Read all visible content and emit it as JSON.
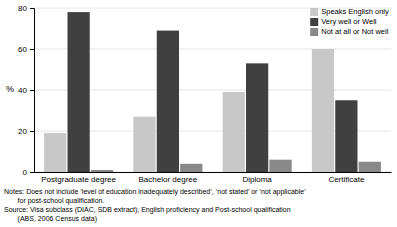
{
  "chart_data": {
    "type": "bar",
    "categories": [
      "Postgraduate degree",
      "Bachelor degree",
      "Diploma",
      "Certificate"
    ],
    "series": [
      {
        "name": "Speaks English only",
        "color": "#c8c8c8",
        "values": [
          19,
          27,
          39,
          60
        ]
      },
      {
        "name": "Very well or Well",
        "color": "#404040",
        "values": [
          78,
          69,
          53,
          35
        ]
      },
      {
        "name": "Not at all or Not well",
        "color": "#888888",
        "values": [
          1,
          4,
          6,
          5
        ]
      }
    ],
    "ylabel": "%",
    "ylim": [
      0,
      80
    ],
    "yticks": [
      0,
      20,
      40,
      60,
      80
    ],
    "grid": true,
    "legend": "upper right",
    "annotations": [
      "Notes: Does not include ‘level of education inadequately described’, ‘not stated’ or ‘not applicable’",
      "       for post-school qualification.",
      "Source: Visa subclass (DIAC, SDB extract), English proficiency and Post-school qualification",
      "       (ABS, 2006 Census data)"
    ]
  }
}
